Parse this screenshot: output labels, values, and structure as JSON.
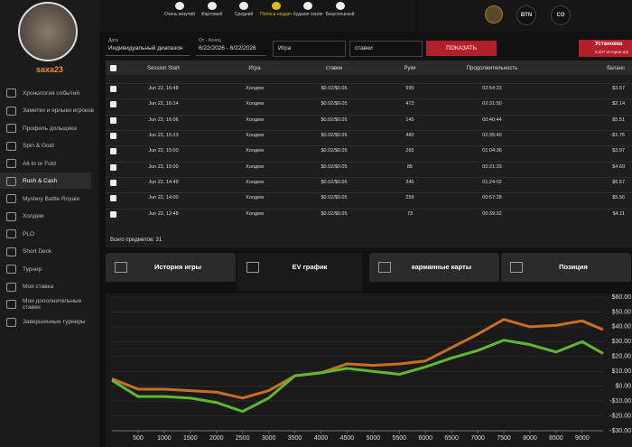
{
  "sidebar": {
    "username": "saxa23",
    "menu": [
      "Хронология событий",
      "Заметки и ярлыки игроков",
      "Профиль дольщика",
      "Spin & Gold",
      "All-In or Fold",
      "Rush & Cash",
      "Mystery Battle Royale",
      "Холдем",
      "PLO",
      "Short Deck",
      "Турнир",
      "Моя ставка",
      "Мои дополнительные ставки",
      "Завершенные турниры"
    ]
  },
  "luck_bar": {
    "labels": [
      "Очень везучий",
      "Фартовый",
      "Средний",
      "Полоса неудач",
      "Худшая серия",
      "Безуспешный"
    ],
    "positions": [
      "BTN",
      "CO"
    ]
  },
  "filters": {
    "date_label": "Дата",
    "date_value": "Индивидуальный диапазон",
    "range_label": "От - Конец",
    "range_value": "6/22/2026 - 6/22/2026",
    "game": "Игра",
    "stakes": "ставки",
    "show_button": "ПОКАЗАТЬ",
    "install": "Установка",
    "install_sub": "9,407 истории игр"
  },
  "table": {
    "headers": [
      "Session Start",
      "Игра",
      "ставки",
      "Руки",
      "Продолжительность",
      "баланс"
    ],
    "rows": [
      [
        "Jun 22, 16:48",
        "Холдем",
        "$0.02/$0.05",
        "590",
        "02:54:23",
        "$3.57"
      ],
      [
        "Jun 22, 16:14",
        "Холдем",
        "$0.02/$0.05",
        "472",
        "02:31:50",
        "$2.14"
      ],
      [
        "Jun 22, 16:06",
        "Холдем",
        "$0.02/$0.05",
        "145",
        "00:40:44",
        "$5.51"
      ],
      [
        "Jun 22, 15:23",
        "Холдем",
        "$0.02/$0.05",
        "480",
        "02:35:40",
        "-$1.75"
      ],
      [
        "Jun 22, 15:00",
        "Холдем",
        "$0.02/$0.05",
        "265",
        "01:04:36",
        "$3.97"
      ],
      [
        "Jun 22, 15:00",
        "Холдем",
        "$0.02/$0.05",
        "85",
        "00:21:29",
        "$4.69"
      ],
      [
        "Jun 22, 14:49",
        "Холдем",
        "$0.02/$0.05",
        "345",
        "01:24:02",
        "$6.57"
      ],
      [
        "Jun 22, 14:00",
        "Холдем",
        "$0.02/$0.05",
        "259",
        "00:57:28",
        "$5.56"
      ],
      [
        "Jun 22, 12:48",
        "Холдем",
        "$0.02/$0.05",
        "73",
        "00:39:32",
        "$4.11"
      ]
    ],
    "total": "Всего предметов: 31"
  },
  "tabs": [
    "История игры",
    "EV график",
    "карманные карты",
    "Позиция"
  ],
  "chart_data": {
    "type": "line",
    "x": [
      0,
      500,
      1000,
      1500,
      2000,
      2500,
      3000,
      3500,
      4000,
      4500,
      5000,
      5500,
      6000,
      6500,
      7000,
      7500,
      8000,
      8500,
      9000,
      9400
    ],
    "series": [
      {
        "color": "#c8701e",
        "values": [
          5,
          -2,
          -2,
          -3,
          -4,
          -8,
          -3,
          7,
          9,
          15,
          14,
          15,
          17,
          26,
          35,
          45,
          40,
          41,
          44,
          38
        ]
      },
      {
        "color": "#5fb82e",
        "values": [
          4,
          -7,
          -7,
          -8,
          -11,
          -17,
          -8,
          7,
          9,
          12,
          10,
          8,
          13,
          19,
          24,
          31,
          28,
          23,
          30,
          22
        ]
      }
    ],
    "xlim": [
      0,
      9400
    ],
    "ylim": [
      -30,
      60
    ],
    "xticks": [
      500,
      1000,
      1500,
      2000,
      2500,
      3000,
      3500,
      4000,
      4500,
      5000,
      5500,
      6000,
      6500,
      7000,
      7500,
      8000,
      8500,
      9000
    ],
    "yticks": [
      {
        "value": 60,
        "label": "$60.00"
      },
      {
        "value": 50,
        "label": "$50.00"
      },
      {
        "value": 40,
        "label": "$40.00"
      },
      {
        "value": 30,
        "label": "$30.00"
      },
      {
        "value": 20,
        "label": "$20.00"
      },
      {
        "value": 10,
        "label": "$10.00"
      },
      {
        "value": 0,
        "label": "$0.00"
      },
      {
        "value": -10,
        "label": "-$10.00"
      },
      {
        "value": -20,
        "label": "-$20.00"
      },
      {
        "value": -30,
        "label": "-$30.00"
      }
    ],
    "grid": true
  }
}
